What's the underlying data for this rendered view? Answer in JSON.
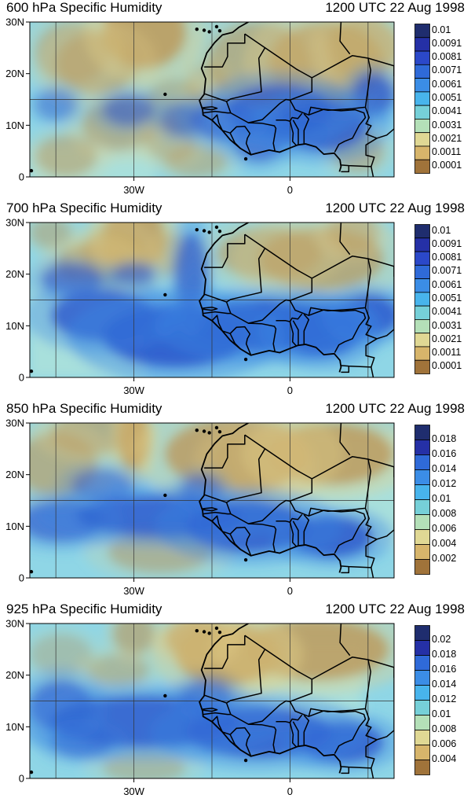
{
  "figure": {
    "panels": [
      {
        "title": "600 hPa Specific Humidity",
        "time": "1200 UTC 22 Aug 1998",
        "colorbar": {
          "labels": [
            "0.01",
            "0.0091",
            "0.0081",
            "0.0071",
            "0.0061",
            "0.0051",
            "0.0041",
            "0.0031",
            "0.0021",
            "0.0011",
            "0.0001"
          ],
          "colors": [
            "#1f2d6e",
            "#2530a6",
            "#2b48c9",
            "#2f6ad8",
            "#3b8de6",
            "#48b4ec",
            "#76d0d8",
            "#b4e0b8",
            "#e0d894",
            "#d7b56b",
            "#a0733a"
          ]
        }
      },
      {
        "title": "700 hPa Specific Humidity",
        "time": "1200 UTC 22 Aug 1998",
        "colorbar": {
          "labels": [
            "0.01",
            "0.0091",
            "0.0081",
            "0.0071",
            "0.0061",
            "0.0051",
            "0.0041",
            "0.0031",
            "0.0021",
            "0.0011",
            "0.0001"
          ],
          "colors": [
            "#1f2d6e",
            "#2530a6",
            "#2b48c9",
            "#2f6ad8",
            "#3b8de6",
            "#48b4ec",
            "#76d0d8",
            "#b4e0b8",
            "#e0d894",
            "#d7b56b",
            "#a0733a"
          ]
        }
      },
      {
        "title": "850 hPa Specific Humidity",
        "time": "1200 UTC 22 Aug 1998",
        "colorbar": {
          "labels": [
            "0.018",
            "0.016",
            "0.014",
            "0.012",
            "0.01",
            "0.008",
            "0.006",
            "0.004",
            "0.002"
          ],
          "colors": [
            "#1f2d6e",
            "#2530a6",
            "#2f6ad8",
            "#3b8de6",
            "#48b4ec",
            "#76d0d8",
            "#b4e0b8",
            "#e0d894",
            "#d7b56b",
            "#a0733a"
          ]
        }
      },
      {
        "title": "925 hPa Specific Humidity",
        "time": "1200 UTC 22 Aug 1998",
        "colorbar": {
          "labels": [
            "0.02",
            "0.018",
            "0.016",
            "0.014",
            "0.012",
            "0.01",
            "0.008",
            "0.006",
            "0.004"
          ],
          "colors": [
            "#1f2d6e",
            "#2530a6",
            "#2f6ad8",
            "#3b8de6",
            "#48b4ec",
            "#76d0d8",
            "#b4e0b8",
            "#e0d894",
            "#d7b56b",
            "#a0733a"
          ]
        }
      }
    ],
    "axes": {
      "lat_labels": [
        "30N",
        "20N",
        "10N",
        "0"
      ],
      "lon_labels": [
        "30W",
        "0"
      ]
    }
  }
}
